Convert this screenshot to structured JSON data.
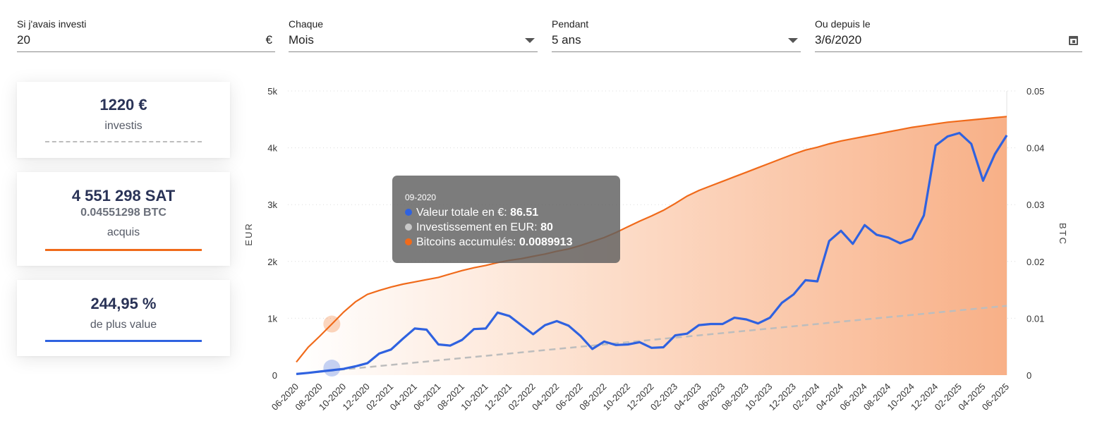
{
  "form": {
    "amount": {
      "label": "Si j'avais investi",
      "value": "20",
      "suffix": "€"
    },
    "frequency": {
      "label": "Chaque",
      "value": "Mois"
    },
    "duration": {
      "label": "Pendant",
      "value": "5 ans"
    },
    "start": {
      "label": "Ou depuis le",
      "value": "3/6/2020"
    }
  },
  "stats": {
    "invested": {
      "value": "1220 €",
      "caption": "investis",
      "color": "#bdbdbd"
    },
    "acquired": {
      "sat": "4 551 298 SAT",
      "btc": "0.04551298 BTC",
      "caption": "acquis",
      "color": "#f06a1a"
    },
    "gain": {
      "value": "244,95 %",
      "caption": "de plus value",
      "color": "#2f62e0"
    }
  },
  "tooltip": {
    "title": "09-2020",
    "rows": [
      {
        "label": "Valeur totale en €: ",
        "value": "86.51",
        "color": "#2f62e0"
      },
      {
        "label": "Investissement en EUR: ",
        "value": "80",
        "color": "#bdbdbd"
      },
      {
        "label": "Bitcoins accumulés: ",
        "value": "0.0089913",
        "color": "#f06a1a"
      }
    ]
  },
  "chart_data": {
    "type": "line",
    "ylabel": "EUR",
    "y2label": "BTC",
    "ylim": [
      0,
      5000
    ],
    "y2lim": [
      0,
      0.05
    ],
    "y_ticks": [
      "0",
      "1k",
      "2k",
      "3k",
      "4k",
      "5k"
    ],
    "y2_ticks": [
      "0",
      "0.01",
      "0.02",
      "0.03",
      "0.04",
      "0.05"
    ],
    "x_tick_labels": [
      "06-2020",
      "08-2020",
      "10-2020",
      "12-2020",
      "02-2021",
      "04-2021",
      "06-2021",
      "08-2021",
      "10-2021",
      "12-2021",
      "02-2022",
      "04-2022",
      "06-2022",
      "08-2022",
      "10-2022",
      "12-2022",
      "02-2023",
      "04-2023",
      "06-2023",
      "08-2023",
      "10-2023",
      "12-2023",
      "02-2024",
      "04-2024",
      "06-2024",
      "08-2024",
      "10-2024",
      "12-2024",
      "02-2025",
      "04-2025",
      "06-2025"
    ],
    "series": [
      {
        "name": "Valeur totale en €",
        "axis": "left",
        "color": "#2f62e0",
        "values": [
          20,
          40,
          63,
          86.51,
          110,
          155,
          210,
          380,
          450,
          640,
          820,
          800,
          540,
          520,
          620,
          810,
          820,
          1100,
          1040,
          880,
          720,
          880,
          950,
          870,
          690,
          460,
          590,
          530,
          540,
          580,
          480,
          490,
          700,
          730,
          880,
          900,
          900,
          1010,
          980,
          910,
          1010,
          1270,
          1420,
          1670,
          1650,
          2360,
          2540,
          2310,
          2640,
          2470,
          2420,
          2320,
          2400,
          2810,
          4040,
          4200,
          4260,
          4070,
          3420,
          3890,
          4220
        ]
      },
      {
        "name": "Investissement en EUR",
        "axis": "left",
        "color": "#bdbdbd",
        "dashed": true,
        "values": [
          20,
          40,
          60,
          80,
          100,
          120,
          140,
          160,
          180,
          200,
          220,
          240,
          260,
          280,
          300,
          320,
          340,
          360,
          380,
          400,
          420,
          440,
          460,
          480,
          500,
          520,
          540,
          560,
          580,
          600,
          620,
          640,
          660,
          680,
          700,
          720,
          740,
          760,
          780,
          800,
          820,
          840,
          860,
          880,
          900,
          920,
          940,
          960,
          980,
          1000,
          1020,
          1040,
          1060,
          1080,
          1100,
          1120,
          1140,
          1160,
          1180,
          1200,
          1220
        ]
      },
      {
        "name": "Bitcoins accumulés",
        "axis": "right",
        "color": "#f06a1a",
        "area": true,
        "values": [
          0.0023,
          0.0049,
          0.0069,
          0.0089913,
          0.0111,
          0.0129,
          0.0142,
          0.0149,
          0.0155,
          0.016,
          0.0164,
          0.0168,
          0.0172,
          0.0178,
          0.0184,
          0.0189,
          0.0193,
          0.0198,
          0.0202,
          0.0205,
          0.0209,
          0.0213,
          0.0218,
          0.0222,
          0.0228,
          0.0235,
          0.0242,
          0.0251,
          0.0261,
          0.0271,
          0.028,
          0.029,
          0.0302,
          0.0315,
          0.0325,
          0.0333,
          0.0341,
          0.0349,
          0.0357,
          0.0365,
          0.0373,
          0.0381,
          0.0389,
          0.0396,
          0.0401,
          0.0407,
          0.0412,
          0.0416,
          0.042,
          0.0424,
          0.0428,
          0.0432,
          0.0436,
          0.0439,
          0.0442,
          0.0445,
          0.0447,
          0.0449,
          0.0451,
          0.0453,
          0.0455
        ]
      }
    ],
    "highlight_index": 3
  }
}
